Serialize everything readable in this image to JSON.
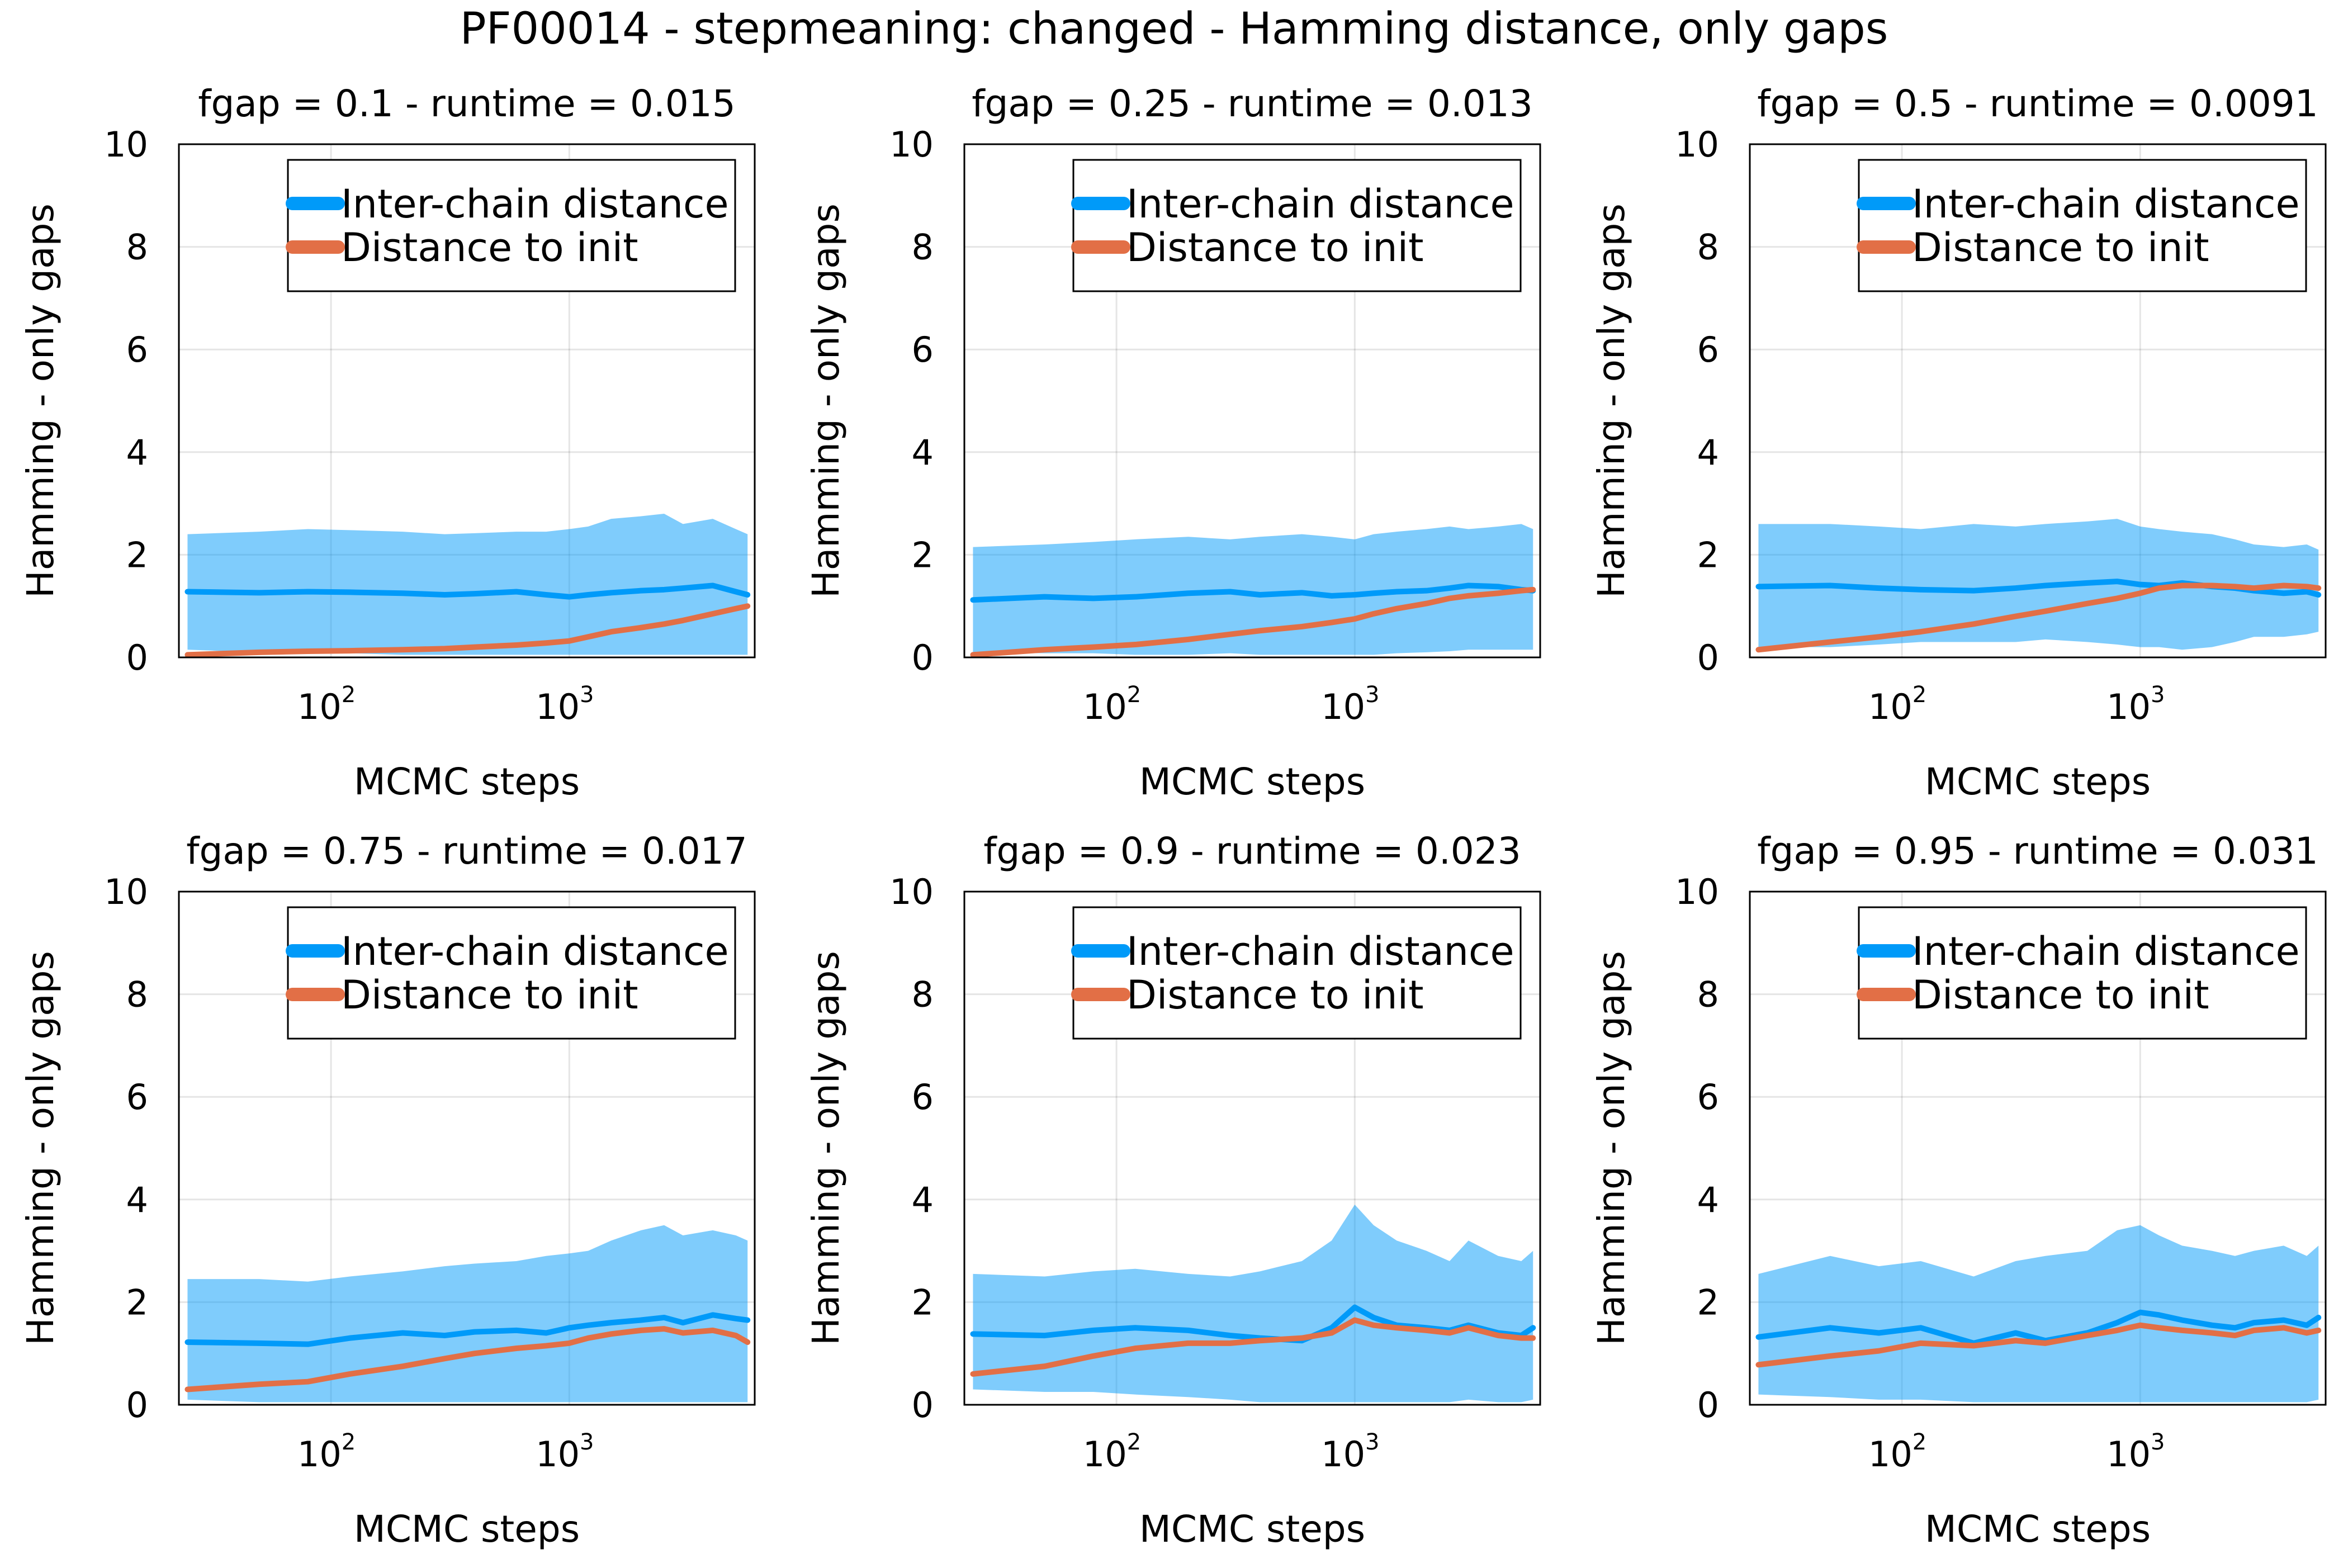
{
  "figure": {
    "title": "PF00014 - stepmeaning: changed - Hamming distance, only gaps"
  },
  "colors": {
    "inter_chain": "#009af9",
    "inter_chain_band": "#80c7f5",
    "distance_to_init": "#e26f46"
  },
  "chart_data": [
    {
      "type": "line",
      "title": "fgap = 0.1 - runtime = 0.015",
      "xlabel": "MCMC steps",
      "ylabel": "Hamming - only gaps",
      "xscale": "log",
      "xlim": [
        23,
        6000
      ],
      "ylim": [
        0,
        10
      ],
      "xticks": [
        "10^2",
        "10^3"
      ],
      "yticks": [
        "0",
        "2",
        "4",
        "6",
        "8",
        "10"
      ],
      "grid": true,
      "legend": "top-right",
      "series": [
        {
          "name": "Inter-chain distance",
          "x": [
            25,
            50,
            80,
            120,
            200,
            300,
            400,
            600,
            800,
            1000,
            1200,
            1500,
            2000,
            2500,
            3000,
            4000,
            5000,
            5600
          ],
          "y": [
            1.28,
            1.26,
            1.28,
            1.27,
            1.25,
            1.22,
            1.24,
            1.28,
            1.22,
            1.18,
            1.22,
            1.26,
            1.3,
            1.32,
            1.35,
            1.4,
            1.28,
            1.22
          ],
          "band_lower": [
            0.15,
            0.1,
            0.1,
            0.08,
            0.05,
            0.05,
            0.05,
            0.05,
            0.05,
            0.05,
            0.05,
            0.05,
            0.05,
            0.05,
            0.05,
            0.05,
            0.05,
            0.05
          ],
          "band_upper": [
            2.4,
            2.45,
            2.5,
            2.48,
            2.45,
            2.4,
            2.42,
            2.45,
            2.45,
            2.5,
            2.55,
            2.7,
            2.75,
            2.8,
            2.6,
            2.7,
            2.5,
            2.4
          ]
        },
        {
          "name": "Distance to init",
          "x": [
            25,
            50,
            80,
            120,
            200,
            300,
            400,
            600,
            800,
            1000,
            1200,
            1500,
            2000,
            2500,
            3000,
            4000,
            5000,
            5600
          ],
          "y": [
            0.05,
            0.1,
            0.12,
            0.13,
            0.15,
            0.17,
            0.2,
            0.24,
            0.28,
            0.32,
            0.4,
            0.5,
            0.58,
            0.65,
            0.72,
            0.85,
            0.95,
            1.0
          ]
        }
      ]
    },
    {
      "type": "line",
      "title": "fgap = 0.25 - runtime = 0.013",
      "xlabel": "MCMC steps",
      "ylabel": "Hamming - only gaps",
      "xscale": "log",
      "xlim": [
        23,
        6000
      ],
      "ylim": [
        0,
        10
      ],
      "xticks": [
        "10^2",
        "10^3"
      ],
      "yticks": [
        "0",
        "2",
        "4",
        "6",
        "8",
        "10"
      ],
      "grid": true,
      "legend": "top-right",
      "series": [
        {
          "name": "Inter-chain distance",
          "x": [
            25,
            50,
            80,
            120,
            200,
            300,
            400,
            600,
            800,
            1000,
            1200,
            1500,
            2000,
            2500,
            3000,
            4000,
            5000,
            5600
          ],
          "y": [
            1.12,
            1.18,
            1.15,
            1.18,
            1.25,
            1.28,
            1.22,
            1.26,
            1.2,
            1.22,
            1.25,
            1.28,
            1.3,
            1.35,
            1.4,
            1.38,
            1.32,
            1.3
          ],
          "band_lower": [
            0.1,
            0.08,
            0.08,
            0.05,
            0.05,
            0.08,
            0.05,
            0.05,
            0.05,
            0.05,
            0.05,
            0.08,
            0.1,
            0.12,
            0.15,
            0.15,
            0.15,
            0.15
          ],
          "band_upper": [
            2.15,
            2.2,
            2.25,
            2.3,
            2.35,
            2.3,
            2.35,
            2.4,
            2.35,
            2.3,
            2.4,
            2.45,
            2.5,
            2.55,
            2.5,
            2.55,
            2.6,
            2.5
          ]
        },
        {
          "name": "Distance to init",
          "x": [
            25,
            50,
            80,
            120,
            200,
            300,
            400,
            600,
            800,
            1000,
            1200,
            1500,
            2000,
            2500,
            3000,
            4000,
            5000,
            5600
          ],
          "y": [
            0.05,
            0.15,
            0.2,
            0.25,
            0.35,
            0.45,
            0.52,
            0.6,
            0.68,
            0.75,
            0.85,
            0.95,
            1.05,
            1.15,
            1.2,
            1.25,
            1.3,
            1.32
          ]
        }
      ]
    },
    {
      "type": "line",
      "title": "fgap = 0.5 - runtime = 0.0091",
      "xlabel": "MCMC steps",
      "ylabel": "Hamming - only gaps",
      "xscale": "log",
      "xlim": [
        23,
        6000
      ],
      "ylim": [
        0,
        10
      ],
      "xticks": [
        "10^2",
        "10^3"
      ],
      "yticks": [
        "0",
        "2",
        "4",
        "6",
        "8",
        "10"
      ],
      "grid": true,
      "legend": "top-right",
      "series": [
        {
          "name": "Inter-chain distance",
          "x": [
            25,
            50,
            80,
            120,
            200,
            300,
            400,
            600,
            800,
            1000,
            1200,
            1500,
            2000,
            2500,
            3000,
            4000,
            5000,
            5600
          ],
          "y": [
            1.38,
            1.4,
            1.35,
            1.32,
            1.3,
            1.35,
            1.4,
            1.45,
            1.48,
            1.42,
            1.4,
            1.45,
            1.38,
            1.35,
            1.3,
            1.25,
            1.28,
            1.22
          ],
          "band_lower": [
            0.2,
            0.2,
            0.25,
            0.3,
            0.3,
            0.3,
            0.35,
            0.3,
            0.25,
            0.2,
            0.2,
            0.15,
            0.2,
            0.3,
            0.4,
            0.4,
            0.45,
            0.5
          ],
          "band_upper": [
            2.6,
            2.6,
            2.55,
            2.5,
            2.6,
            2.55,
            2.6,
            2.65,
            2.7,
            2.55,
            2.5,
            2.45,
            2.4,
            2.3,
            2.2,
            2.15,
            2.2,
            2.1
          ]
        },
        {
          "name": "Distance to init",
          "x": [
            25,
            50,
            80,
            120,
            200,
            300,
            400,
            600,
            800,
            1000,
            1200,
            1500,
            2000,
            2500,
            3000,
            4000,
            5000,
            5600
          ],
          "y": [
            0.15,
            0.3,
            0.4,
            0.5,
            0.65,
            0.8,
            0.9,
            1.05,
            1.15,
            1.25,
            1.35,
            1.4,
            1.4,
            1.38,
            1.35,
            1.4,
            1.38,
            1.35
          ]
        }
      ]
    },
    {
      "type": "line",
      "title": "fgap = 0.75 - runtime = 0.017",
      "xlabel": "MCMC steps",
      "ylabel": "Hamming - only gaps",
      "xscale": "log",
      "xlim": [
        23,
        6000
      ],
      "ylim": [
        0,
        10
      ],
      "xticks": [
        "10^2",
        "10^3"
      ],
      "yticks": [
        "0",
        "2",
        "4",
        "6",
        "8",
        "10"
      ],
      "grid": true,
      "legend": "top-right",
      "series": [
        {
          "name": "Inter-chain distance",
          "x": [
            25,
            50,
            80,
            120,
            200,
            300,
            400,
            600,
            800,
            1000,
            1200,
            1500,
            2000,
            2500,
            3000,
            4000,
            5000,
            5600
          ],
          "y": [
            1.22,
            1.2,
            1.18,
            1.3,
            1.4,
            1.35,
            1.42,
            1.45,
            1.4,
            1.5,
            1.55,
            1.6,
            1.65,
            1.7,
            1.6,
            1.75,
            1.68,
            1.65
          ],
          "band_lower": [
            0.1,
            0.05,
            0.05,
            0.05,
            0.05,
            0.05,
            0.05,
            0.05,
            0.05,
            0.05,
            0.05,
            0.05,
            0.05,
            0.05,
            0.05,
            0.05,
            0.05,
            0.05
          ],
          "band_upper": [
            2.45,
            2.45,
            2.4,
            2.5,
            2.6,
            2.7,
            2.75,
            2.8,
            2.9,
            2.95,
            3.0,
            3.2,
            3.4,
            3.5,
            3.3,
            3.4,
            3.3,
            3.2
          ]
        },
        {
          "name": "Distance to init",
          "x": [
            25,
            50,
            80,
            120,
            200,
            300,
            400,
            600,
            800,
            1000,
            1200,
            1500,
            2000,
            2500,
            3000,
            4000,
            5000,
            5600
          ],
          "y": [
            0.3,
            0.4,
            0.45,
            0.6,
            0.75,
            0.9,
            1.0,
            1.1,
            1.15,
            1.2,
            1.3,
            1.38,
            1.45,
            1.48,
            1.4,
            1.45,
            1.35,
            1.22
          ]
        }
      ]
    },
    {
      "type": "line",
      "title": "fgap = 0.9 - runtime = 0.023",
      "xlabel": "MCMC steps",
      "ylabel": "Hamming - only gaps",
      "xscale": "log",
      "xlim": [
        23,
        6000
      ],
      "ylim": [
        0,
        10
      ],
      "xticks": [
        "10^2",
        "10^3"
      ],
      "yticks": [
        "0",
        "2",
        "4",
        "6",
        "8",
        "10"
      ],
      "grid": true,
      "legend": "top-right",
      "series": [
        {
          "name": "Inter-chain distance",
          "x": [
            25,
            50,
            80,
            120,
            200,
            300,
            400,
            600,
            800,
            1000,
            1200,
            1500,
            2000,
            2500,
            3000,
            4000,
            5000,
            5600
          ],
          "y": [
            1.38,
            1.35,
            1.45,
            1.5,
            1.45,
            1.35,
            1.3,
            1.25,
            1.5,
            1.9,
            1.7,
            1.55,
            1.5,
            1.45,
            1.55,
            1.4,
            1.35,
            1.5
          ],
          "band_lower": [
            0.3,
            0.25,
            0.25,
            0.2,
            0.15,
            0.1,
            0.05,
            0.05,
            0.05,
            0.05,
            0.05,
            0.05,
            0.05,
            0.05,
            0.1,
            0.05,
            0.05,
            0.1
          ],
          "band_upper": [
            2.55,
            2.5,
            2.6,
            2.65,
            2.55,
            2.5,
            2.6,
            2.8,
            3.2,
            3.9,
            3.5,
            3.2,
            3.0,
            2.8,
            3.2,
            2.9,
            2.8,
            3.0
          ]
        },
        {
          "name": "Distance to init",
          "x": [
            25,
            50,
            80,
            120,
            200,
            300,
            400,
            600,
            800,
            1000,
            1200,
            1500,
            2000,
            2500,
            3000,
            4000,
            5000,
            5600
          ],
          "y": [
            0.6,
            0.75,
            0.95,
            1.1,
            1.2,
            1.2,
            1.25,
            1.3,
            1.4,
            1.65,
            1.55,
            1.5,
            1.45,
            1.4,
            1.5,
            1.35,
            1.3,
            1.3
          ]
        }
      ]
    },
    {
      "type": "line",
      "title": "fgap = 0.95 - runtime = 0.031",
      "xlabel": "MCMC steps",
      "ylabel": "Hamming - only gaps",
      "xscale": "log",
      "xlim": [
        23,
        6000
      ],
      "ylim": [
        0,
        10
      ],
      "xticks": [
        "10^2",
        "10^3"
      ],
      "yticks": [
        "0",
        "2",
        "4",
        "6",
        "8",
        "10"
      ],
      "grid": true,
      "legend": "top-right",
      "series": [
        {
          "name": "Inter-chain distance",
          "x": [
            25,
            50,
            80,
            120,
            200,
            300,
            400,
            600,
            800,
            1000,
            1200,
            1500,
            2000,
            2500,
            3000,
            4000,
            5000,
            5600
          ],
          "y": [
            1.32,
            1.5,
            1.4,
            1.5,
            1.2,
            1.4,
            1.25,
            1.4,
            1.6,
            1.8,
            1.75,
            1.65,
            1.55,
            1.5,
            1.6,
            1.65,
            1.55,
            1.7
          ],
          "band_lower": [
            0.2,
            0.15,
            0.1,
            0.1,
            0.05,
            0.05,
            0.05,
            0.05,
            0.05,
            0.05,
            0.05,
            0.05,
            0.05,
            0.05,
            0.05,
            0.05,
            0.05,
            0.1
          ],
          "band_upper": [
            2.55,
            2.9,
            2.7,
            2.8,
            2.5,
            2.8,
            2.9,
            3.0,
            3.4,
            3.5,
            3.3,
            3.1,
            3.0,
            2.9,
            3.0,
            3.1,
            2.9,
            3.1
          ]
        },
        {
          "name": "Distance to init",
          "x": [
            25,
            50,
            80,
            120,
            200,
            300,
            400,
            600,
            800,
            1000,
            1200,
            1500,
            2000,
            2500,
            3000,
            4000,
            5000,
            5600
          ],
          "y": [
            0.78,
            0.95,
            1.05,
            1.2,
            1.15,
            1.25,
            1.2,
            1.35,
            1.45,
            1.55,
            1.5,
            1.45,
            1.4,
            1.35,
            1.45,
            1.5,
            1.4,
            1.45
          ]
        }
      ]
    }
  ]
}
